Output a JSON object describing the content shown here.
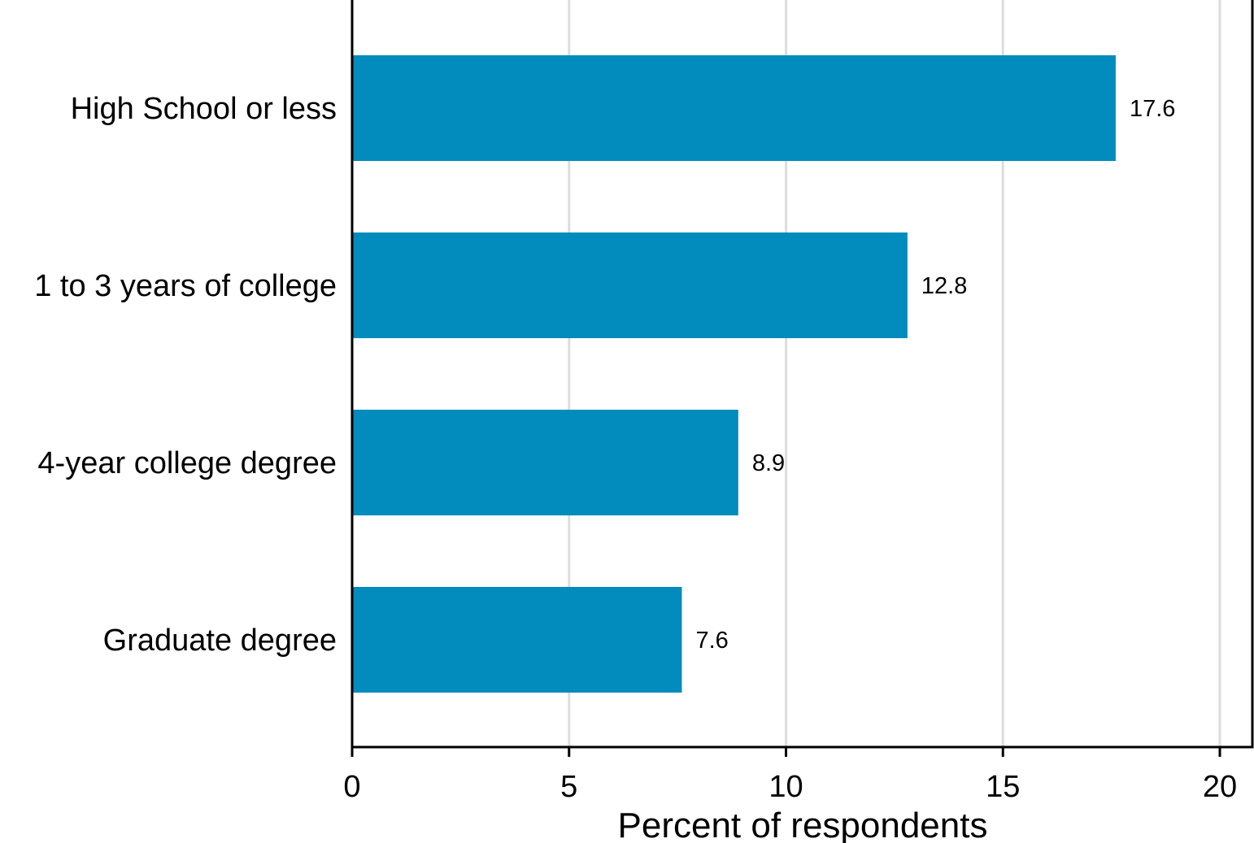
{
  "chart_data": {
    "type": "bar",
    "orientation": "horizontal",
    "title": "",
    "xlabel": "Percent of respondents",
    "ylabel": "",
    "categories": [
      "High School or less",
      "1 to 3 years of college",
      "4-year college degree",
      "Graduate degree"
    ],
    "values": [
      17.6,
      12.8,
      8.9,
      7.6
    ],
    "value_labels": [
      "17.6",
      "12.8",
      "8.9",
      "7.6"
    ],
    "xlim": [
      0,
      20
    ],
    "xticks": [
      0,
      5,
      10,
      15,
      20
    ],
    "xtick_labels": [
      "0",
      "5",
      "10",
      "15",
      "20"
    ],
    "grid": "vertical",
    "legend": "none",
    "colors": {
      "bar": "#028bbd",
      "grid": "#dddddd",
      "axis": "#000000"
    }
  }
}
